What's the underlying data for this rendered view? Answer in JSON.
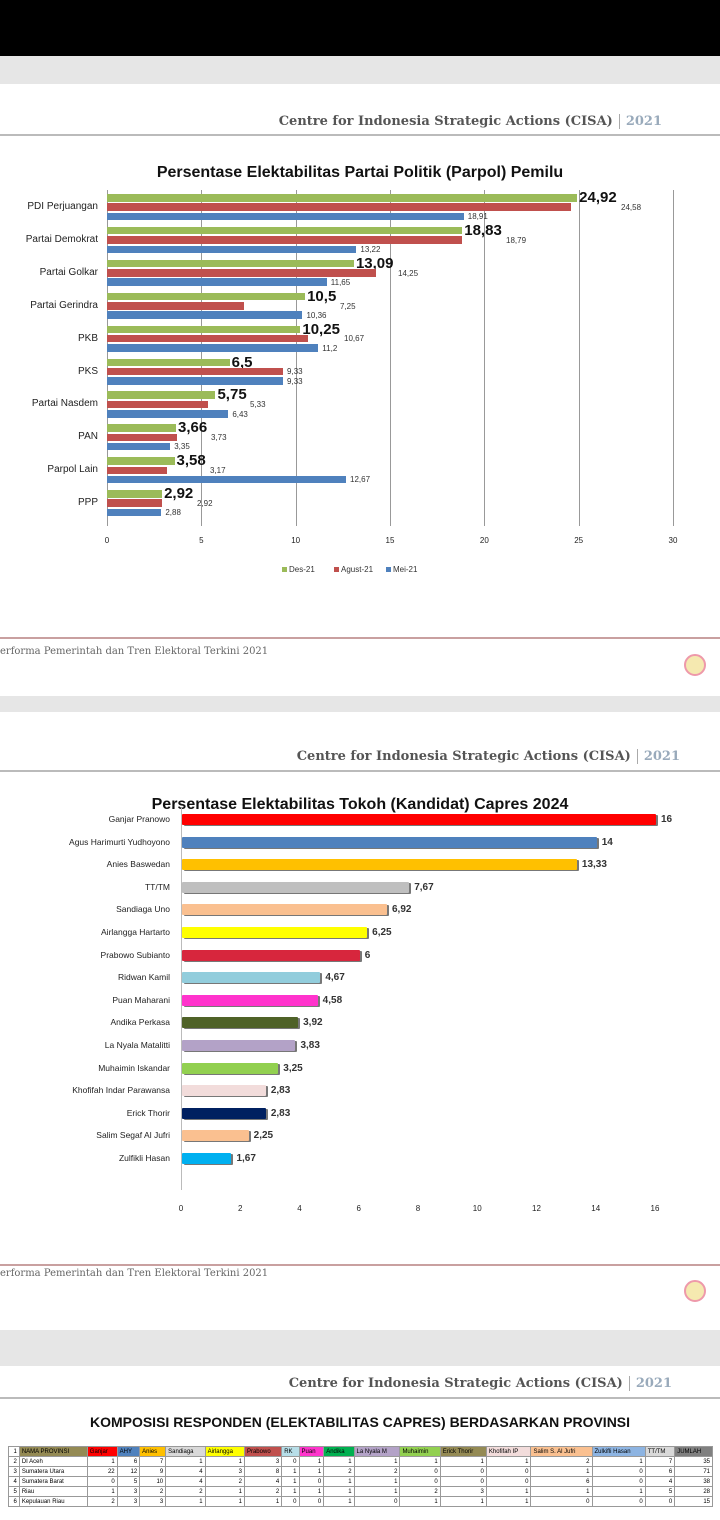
{
  "header": {
    "org": "Centre for Indonesia Strategic Actions (CISA)",
    "year": "2021"
  },
  "footer": {
    "text": "erforma Pemerintah dan Tren Elektoral Terkini 2021"
  },
  "chart_data": [
    {
      "type": "bar",
      "orientation": "horizontal",
      "title": "Persentase Elektabilitas Partai Politik (Parpol) Pemilu",
      "categories": [
        "PDI Perjuangan",
        "Partai Demokrat",
        "Partai Golkar",
        "Partai Gerindra",
        "PKB",
        "PKS",
        "Partai Nasdem",
        "PAN",
        "Parpol Lain",
        "PPP"
      ],
      "xlim": [
        0,
        30
      ],
      "ticks": [
        "0",
        "5",
        "10",
        "15",
        "20",
        "25",
        "30"
      ],
      "grid": true,
      "legend": "bottom",
      "series": [
        {
          "name": "Des-21",
          "color": "#9bbb59",
          "values": [
            24.92,
            18.83,
            13.09,
            10.5,
            10.25,
            6.5,
            5.75,
            3.66,
            3.58,
            2.92
          ],
          "labels": [
            "24,92",
            "18,83",
            "13,09",
            "10,5",
            "10,25",
            "6,5",
            "5,75",
            "3,66",
            "3,58",
            "2,92"
          ]
        },
        {
          "name": "Agust-21",
          "color": "#c0504d",
          "values": [
            24.58,
            18.79,
            14.25,
            7.25,
            10.67,
            9.33,
            5.33,
            3.73,
            3.17,
            2.92
          ],
          "labels": [
            "24,58",
            "18,79",
            "14,25",
            "7,25",
            "10,67",
            "9,33",
            "5,33",
            "3,73",
            "3,17",
            "2,92"
          ]
        },
        {
          "name": "Mei-21",
          "color": "#4f81bd",
          "values": [
            18.91,
            13.22,
            11.65,
            10.36,
            11.2,
            9.33,
            6.43,
            3.35,
            12.67,
            2.88
          ],
          "labels": [
            "18,91",
            "13,22",
            "11,65",
            "10,36",
            "11,2",
            "9,33",
            "6,43",
            "3,35",
            "12,67",
            "2,88"
          ]
        }
      ]
    },
    {
      "type": "bar",
      "orientation": "horizontal",
      "title": "Persentase Elektabilitas Tokoh (Kandidat) Capres 2024",
      "categories": [
        "Ganjar Pranowo",
        "Agus Harimurti Yudhoyono",
        "Anies Baswedan",
        "TT/TM",
        "Sandiaga Uno",
        "Airlangga Hartarto",
        "Prabowo Subianto",
        "Ridwan Kamil",
        "Puan Maharani",
        "Andika Perkasa",
        "La Nyala Matalitti",
        "Muhaimin Iskandar",
        "Khofifah Indar Parawansa",
        "Erick Thorir",
        "Salim Segaf Al Jufri",
        "Zulfikli Hasan"
      ],
      "values": [
        16,
        14,
        13.33,
        7.67,
        6.92,
        6.25,
        6,
        4.67,
        4.58,
        3.92,
        3.83,
        3.25,
        2.83,
        2.83,
        2.25,
        1.67
      ],
      "labels": [
        "16",
        "14",
        "13,33",
        "7,67",
        "6,92",
        "6,25",
        "6",
        "4,67",
        "4,58",
        "3,92",
        "3,83",
        "3,25",
        "2,83",
        "2,83",
        "2,25",
        "1,67"
      ],
      "colors": [
        "#ff0000",
        "#4f81bd",
        "#ffc000",
        "#bfbfbf",
        "#fac090",
        "#ffff00",
        "#d7263d",
        "#92cddc",
        "#ff33cc",
        "#4f6228",
        "#b3a2c7",
        "#92d050",
        "#f2dcdb",
        "#002060",
        "#fac090",
        "#00b0f0"
      ],
      "xlim": [
        0,
        16
      ],
      "ticks": [
        "0",
        "2",
        "4",
        "6",
        "8",
        "10",
        "12",
        "14",
        "16"
      ]
    },
    {
      "type": "table",
      "title": "KOMPOSISI RESPONDEN (ELEKTABILITAS CAPRES) BERDASARKAN PROVINSI",
      "columns": [
        "NAMA PROVINSI",
        "Ganjar",
        "AHY",
        "Anies",
        "Sandiaga",
        "Airlangga",
        "Prabowo",
        "RK",
        "Puan",
        "Andika",
        "La Nyala M",
        "Muhaimin",
        "Erick Thorir",
        "Khofifah IP",
        "Salim S. Al Jufri",
        "Zulkifli Hasan",
        "TT/TM",
        "JUMLAH"
      ],
      "column_colors": [
        "#948a54",
        "#ff0000",
        "#4f81bd",
        "#ffc000",
        "#d9d9d9",
        "#ffff00",
        "#c0504d",
        "#b7dee8",
        "#ff33cc",
        "#00b050",
        "#b3a2c7",
        "#92d050",
        "#948a54",
        "#f2dcdb",
        "#fac090",
        "#8db4e2",
        "#d9d9d9",
        "#808080"
      ],
      "rows": [
        {
          "num": "2",
          "cells": [
            "DI Aceh",
            "1",
            "6",
            "7",
            "1",
            "1",
            "3",
            "0",
            "1",
            "1",
            "1",
            "1",
            "1",
            "1",
            "2",
            "1",
            "7",
            "35"
          ]
        },
        {
          "num": "3",
          "cells": [
            "Sumatera Utara",
            "22",
            "12",
            "9",
            "4",
            "3",
            "8",
            "1",
            "1",
            "2",
            "2",
            "0",
            "0",
            "0",
            "1",
            "0",
            "6",
            "71"
          ]
        },
        {
          "num": "4",
          "cells": [
            "Sumatera Barat",
            "0",
            "5",
            "10",
            "4",
            "2",
            "4",
            "1",
            "0",
            "1",
            "1",
            "0",
            "0",
            "0",
            "6",
            "0",
            "4",
            "38"
          ]
        },
        {
          "num": "5",
          "cells": [
            "Riau",
            "1",
            "3",
            "2",
            "2",
            "1",
            "2",
            "1",
            "1",
            "1",
            "1",
            "2",
            "3",
            "1",
            "1",
            "1",
            "5",
            "28"
          ]
        },
        {
          "num": "6",
          "cells": [
            "Kepulauan Riau",
            "2",
            "3",
            "3",
            "1",
            "1",
            "1",
            "0",
            "0",
            "1",
            "0",
            "1",
            "1",
            "1",
            "0",
            "0",
            "0",
            "15"
          ]
        }
      ]
    }
  ]
}
